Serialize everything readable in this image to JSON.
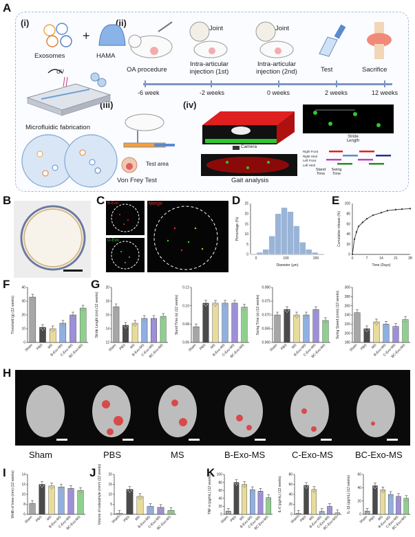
{
  "panels": {
    "A": "A",
    "B": "B",
    "C": "C",
    "D": "D",
    "E": "E",
    "F": "F",
    "G": "G",
    "H": "H",
    "I": "I",
    "J": "J",
    "K": "K"
  },
  "A": {
    "sub_i": "(i)",
    "sub_ii": "(ii)",
    "sub_iii": "(iii)",
    "sub_iv": "(iv)",
    "exosomes": "Exosomes",
    "hama": "HAMA",
    "plus": "+",
    "uv": "UV",
    "microfluidic": "Microfluidic fabrication",
    "steps": [
      "OA procedure",
      "Intra-articular injection (1st)",
      "Intra-articular injection (2nd)",
      "Test",
      "Sacrifice"
    ],
    "joint": "Joint",
    "timepoints": [
      "-6 week",
      "-2 weeks",
      "0 weeks",
      "2 weeks",
      "12 weeks"
    ],
    "von_frey": "Von Frey Test",
    "test_area": "Test area",
    "camera": "Camera",
    "gait": "Gait analysis",
    "stride_length": "Stride Length",
    "legend_paws": [
      "Right Front",
      "Right Hind",
      "Left Front",
      "Left Hind"
    ],
    "stand_time": "Stand Time",
    "swing_time": "Swing Time"
  },
  "C": {
    "bexo": "B-Exo",
    "merge": "Merge",
    "dapi": "D-Exo"
  },
  "H_labels": [
    "Sham",
    "PBS",
    "MS",
    "B-Exo-MS",
    "C-Exo-MS",
    "BC-Exo-MS"
  ],
  "groups": [
    "Sham",
    "PBS",
    "MS",
    "B-Exo-MS",
    "C-Exo-MS",
    "BC-Exo-MS"
  ],
  "colors": {
    "Sham": "#a6a6a6",
    "PBS": "#4a4a4a",
    "MS": "#e8dc9a",
    "B-Exo-MS": "#8fb0e0",
    "C-Exo-MS": "#9d8fd8",
    "BC-Exo-MS": "#8fd08f"
  },
  "chart_data": [
    {
      "id": "D",
      "type": "bar",
      "xlabel": "Diameter (μm)",
      "ylabel": "Percentage (%)",
      "categories": [
        "10",
        "30",
        "50",
        "70",
        "90",
        "110",
        "130",
        "150",
        "170",
        "190",
        "210",
        "230"
      ],
      "values": [
        0.3,
        1,
        2.5,
        9,
        20,
        23,
        21,
        14,
        6,
        2.5,
        1,
        0.3
      ],
      "xticks": [
        "0",
        "100",
        "200"
      ],
      "yticks": [
        "0",
        "5",
        "10",
        "15",
        "20",
        "25"
      ],
      "ylim": [
        0,
        25
      ]
    },
    {
      "id": "E",
      "type": "line",
      "xlabel": "Time (Days)",
      "ylabel": "Cumulative release (%)",
      "x": [
        0,
        1,
        2,
        3,
        5,
        7,
        10,
        14,
        17,
        21,
        24,
        28
      ],
      "y": [
        0,
        30,
        44,
        55,
        63,
        70,
        77,
        82,
        86,
        88,
        89,
        90
      ],
      "xticks": [
        "0",
        "7",
        "14",
        "21",
        "28"
      ],
      "yticks": [
        "0",
        "20",
        "40",
        "60",
        "80",
        "100"
      ],
      "xlim": [
        0,
        28
      ],
      "ylim": [
        0,
        100
      ]
    },
    {
      "id": "F",
      "type": "bar",
      "ylabel": "Threshold (g) (12 weeks)",
      "categories": [
        "Sham",
        "PBS",
        "MS",
        "B-Exo-MS",
        "C-Exo-MS",
        "BC-Exo-MS"
      ],
      "values": [
        33,
        11,
        10,
        14,
        20,
        25
      ],
      "ylim": [
        0,
        40
      ],
      "yticks": [
        "0",
        "10",
        "20",
        "30",
        "40"
      ]
    },
    {
      "id": "G1",
      "type": "bar",
      "ylabel": "Stride Length (cm) (12 weeks)",
      "categories": [
        "Sham",
        "PBS",
        "MS",
        "B-Exo-MS",
        "C-Exo-MS",
        "BC-Exo-MS"
      ],
      "values": [
        17.2,
        14.5,
        14.8,
        15.5,
        15.5,
        15.8
      ],
      "ylim": [
        12,
        20
      ],
      "yticks": [
        "12",
        "14",
        "16",
        "18",
        "20"
      ]
    },
    {
      "id": "G2",
      "type": "bar",
      "ylabel": "Stand Time (s) (12 weeks)",
      "categories": [
        "Sham",
        "PBS",
        "MS",
        "B-Exo-MS",
        "C-Exo-MS",
        "BC-Exo-MS"
      ],
      "values": [
        0.08,
        0.11,
        0.11,
        0.11,
        0.11,
        0.105
      ],
      "ylim": [
        0.06,
        0.13
      ],
      "yticks": [
        "0.06",
        "0.08",
        "0.10",
        "0.12"
      ]
    },
    {
      "id": "G3",
      "type": "bar",
      "ylabel": "Swing Time (s) (12 weeks)",
      "categories": [
        "Sham",
        "PBS",
        "MS",
        "B-Exo-MS",
        "C-Exo-MS",
        "BC-Exo-MS"
      ],
      "values": [
        0.07,
        0.072,
        0.07,
        0.07,
        0.072,
        0.068
      ],
      "ylim": [
        0.06,
        0.08
      ],
      "yticks": [
        "0.060",
        "0.065",
        "0.070",
        "0.075",
        "0.080"
      ]
    },
    {
      "id": "G4",
      "type": "bar",
      "ylabel": "Swing Speed (cm/s) (12 weeks)",
      "categories": [
        "Sham",
        "PBS",
        "MS",
        "B-Exo-MS",
        "C-Exo-MS",
        "BC-Exo-MS"
      ],
      "values": [
        245,
        210,
        225,
        220,
        215,
        230
      ],
      "ylim": [
        180,
        300
      ],
      "yticks": [
        "180",
        "200",
        "220",
        "240",
        "260",
        "280",
        "300"
      ]
    },
    {
      "id": "I",
      "type": "bar",
      "ylabel": "Width of knee (mm) (12 weeks)",
      "categories": [
        "Sham",
        "PBS",
        "MS",
        "B-Exo-MS",
        "C-Exo-MS",
        "BC-Exo-MS"
      ],
      "values": [
        8.2,
        12,
        11.7,
        11.5,
        11.2,
        10.8
      ],
      "ylim": [
        6,
        14
      ],
      "yticks": [
        "6",
        "8",
        "10",
        "12",
        "14"
      ]
    },
    {
      "id": "J",
      "type": "bar",
      "ylabel": "Volume of osteophyte (mm³) (12 weeks)",
      "categories": [
        "Sham",
        "PBS",
        "MS",
        "B-Exo-MS",
        "C-Exo-MS",
        "BC-Exo-MS"
      ],
      "values": [
        0.5,
        12.5,
        9,
        4,
        3.5,
        2
      ],
      "ylim": [
        0,
        20
      ],
      "yticks": [
        "0",
        "5",
        "10",
        "15",
        "20"
      ]
    },
    {
      "id": "K1",
      "type": "bar",
      "ylabel": "TNF-α (pg/mL) (12 weeks)",
      "categories": [
        "Sham",
        "PBS",
        "MS",
        "B-Exo-MS",
        "C-Exo-MS",
        "BC-Exo-MS"
      ],
      "values": [
        8,
        80,
        75,
        62,
        58,
        42
      ],
      "ylim": [
        0,
        100
      ],
      "yticks": [
        "0",
        "20",
        "40",
        "60",
        "80",
        "100"
      ]
    },
    {
      "id": "K2",
      "type": "bar",
      "ylabel": "IL-6 (pg/mL) (12 weeks)",
      "categories": [
        "Sham",
        "PBS",
        "MS",
        "B-Exo-MS",
        "C-Exo-MS",
        "BC-Exo-MS"
      ],
      "values": [
        2,
        58,
        50,
        6,
        16,
        3
      ],
      "ylim": [
        0,
        80
      ],
      "yticks": [
        "0",
        "20",
        "40",
        "60",
        "80"
      ]
    },
    {
      "id": "K3",
      "type": "bar",
      "ylabel": "IL-1β (pg/mL) (12 weeks)",
      "categories": [
        "Sham",
        "PBS",
        "MS",
        "B-Exo-MS",
        "C-Exo-MS",
        "BC-Exo-MS"
      ],
      "values": [
        5,
        43,
        37,
        30,
        27,
        24
      ],
      "ylim": [
        0,
        60
      ],
      "yticks": [
        "0",
        "20",
        "40",
        "60"
      ]
    }
  ]
}
